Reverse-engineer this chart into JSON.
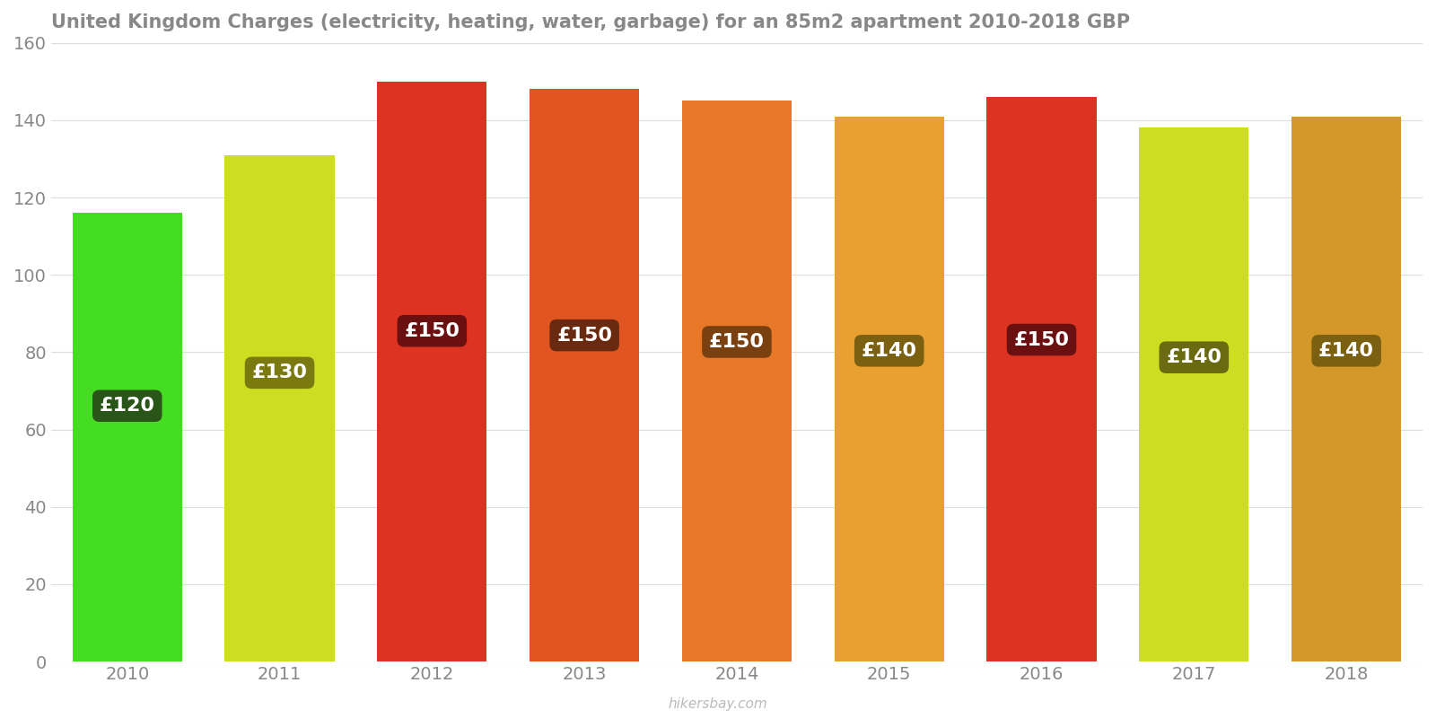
{
  "years": [
    "2010",
    "2011",
    "2012",
    "2013",
    "2014",
    "2015",
    "2016",
    "2017",
    "2018"
  ],
  "values": [
    116,
    131,
    150,
    148,
    145,
    141,
    146,
    138,
    141
  ],
  "labels": [
    "£120",
    "£130",
    "£150",
    "£150",
    "£150",
    "£140",
    "£150",
    "£140",
    "£140"
  ],
  "bar_colors": [
    "#44dd22",
    "#ccdd22",
    "#dd3322",
    "#e05520",
    "#e87828",
    "#e8a030",
    "#dd3322",
    "#ccdd22",
    "#d4982a"
  ],
  "label_bg_colors": [
    "#2a5518",
    "#7a7a10",
    "#6a1010",
    "#6a2a10",
    "#7a4010",
    "#7a6010",
    "#6a1010",
    "#6a6a10",
    "#7a6010"
  ],
  "title": "United Kingdom Charges (electricity, heating, water, garbage) for an 85m2 apartment 2010-2018 GBP",
  "ylim": [
    0,
    160
  ],
  "yticks": [
    0,
    20,
    40,
    60,
    80,
    100,
    120,
    140,
    160
  ],
  "title_fontsize": 15,
  "tick_fontsize": 14,
  "label_fontsize": 16,
  "background_color": "#ffffff",
  "grid_color": "#dddddd",
  "watermark": "hikersbay.com",
  "label_text_color": "#ffffff",
  "bar_width": 0.72,
  "title_color": "#888888",
  "tick_color": "#888888"
}
